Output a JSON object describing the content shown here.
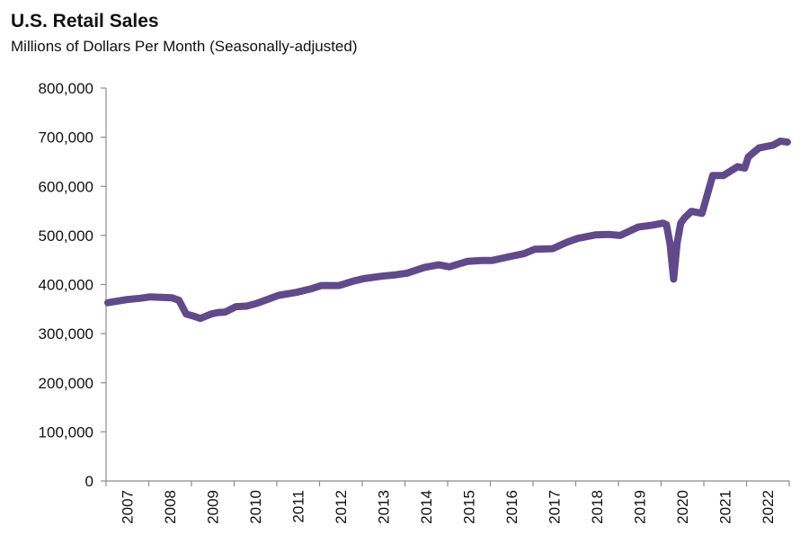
{
  "chart_data": {
    "type": "line",
    "title": "U.S. Retail Sales",
    "subtitle": "Millions of Dollars Per Month (Seasonally-adjusted)",
    "xlabel": "",
    "ylabel": "",
    "ylim": [
      0,
      800000
    ],
    "y_ticks": [
      0,
      100000,
      200000,
      300000,
      400000,
      500000,
      600000,
      700000,
      800000
    ],
    "y_tick_labels": [
      "0",
      "100,000",
      "200,000",
      "300,000",
      "400,000",
      "500,000",
      "600,000",
      "700,000",
      "800,000"
    ],
    "x_tick_labels": [
      "2007",
      "2008",
      "2009",
      "2010",
      "2011",
      "2012",
      "2013",
      "2014",
      "2015",
      "2016",
      "2017",
      "2018",
      "2019",
      "2020",
      "2021",
      "2022"
    ],
    "x_range": [
      "2007-01",
      "2022-12"
    ],
    "grid": false,
    "legend": "none",
    "series": [
      {
        "color": "#604a8b",
        "points": [
          [
            "2007-01",
            363000
          ],
          [
            "2007-06",
            369000
          ],
          [
            "2007-10",
            372000
          ],
          [
            "2008-01",
            375000
          ],
          [
            "2008-04",
            374000
          ],
          [
            "2008-07",
            373000
          ],
          [
            "2008-09",
            368000
          ],
          [
            "2008-11",
            340000
          ],
          [
            "2009-01",
            336000
          ],
          [
            "2009-03",
            331000
          ],
          [
            "2009-06",
            340000
          ],
          [
            "2009-08",
            343000
          ],
          [
            "2009-10",
            344000
          ],
          [
            "2010-01",
            355000
          ],
          [
            "2010-04",
            356000
          ],
          [
            "2010-07",
            362000
          ],
          [
            "2011-01",
            378000
          ],
          [
            "2011-06",
            384000
          ],
          [
            "2011-10",
            391000
          ],
          [
            "2012-01",
            398000
          ],
          [
            "2012-06",
            398000
          ],
          [
            "2012-10",
            407000
          ],
          [
            "2013-01",
            412000
          ],
          [
            "2013-06",
            417000
          ],
          [
            "2013-10",
            420000
          ],
          [
            "2014-01",
            423000
          ],
          [
            "2014-06",
            435000
          ],
          [
            "2014-10",
            440000
          ],
          [
            "2015-01",
            436000
          ],
          [
            "2015-06",
            447000
          ],
          [
            "2015-10",
            449000
          ],
          [
            "2016-01",
            449000
          ],
          [
            "2016-06",
            457000
          ],
          [
            "2016-10",
            463000
          ],
          [
            "2017-01",
            472000
          ],
          [
            "2017-06",
            473000
          ],
          [
            "2017-10",
            486000
          ],
          [
            "2018-01",
            494000
          ],
          [
            "2018-06",
            501000
          ],
          [
            "2018-10",
            502000
          ],
          [
            "2019-01",
            500000
          ],
          [
            "2019-06",
            517000
          ],
          [
            "2019-10",
            521000
          ],
          [
            "2020-01",
            525000
          ],
          [
            "2020-02",
            522000
          ],
          [
            "2020-03",
            483000
          ],
          [
            "2020-04",
            411000
          ],
          [
            "2020-05",
            485000
          ],
          [
            "2020-06",
            525000
          ],
          [
            "2020-07",
            535000
          ],
          [
            "2020-09",
            549000
          ],
          [
            "2020-12",
            545000
          ],
          [
            "2021-01",
            571000
          ],
          [
            "2021-03",
            622000
          ],
          [
            "2021-06",
            622000
          ],
          [
            "2021-10",
            640000
          ],
          [
            "2021-12",
            637000
          ],
          [
            "2022-01",
            660000
          ],
          [
            "2022-04",
            678000
          ],
          [
            "2022-08",
            684000
          ],
          [
            "2022-10",
            692000
          ],
          [
            "2022-12",
            690000
          ]
        ]
      }
    ]
  }
}
